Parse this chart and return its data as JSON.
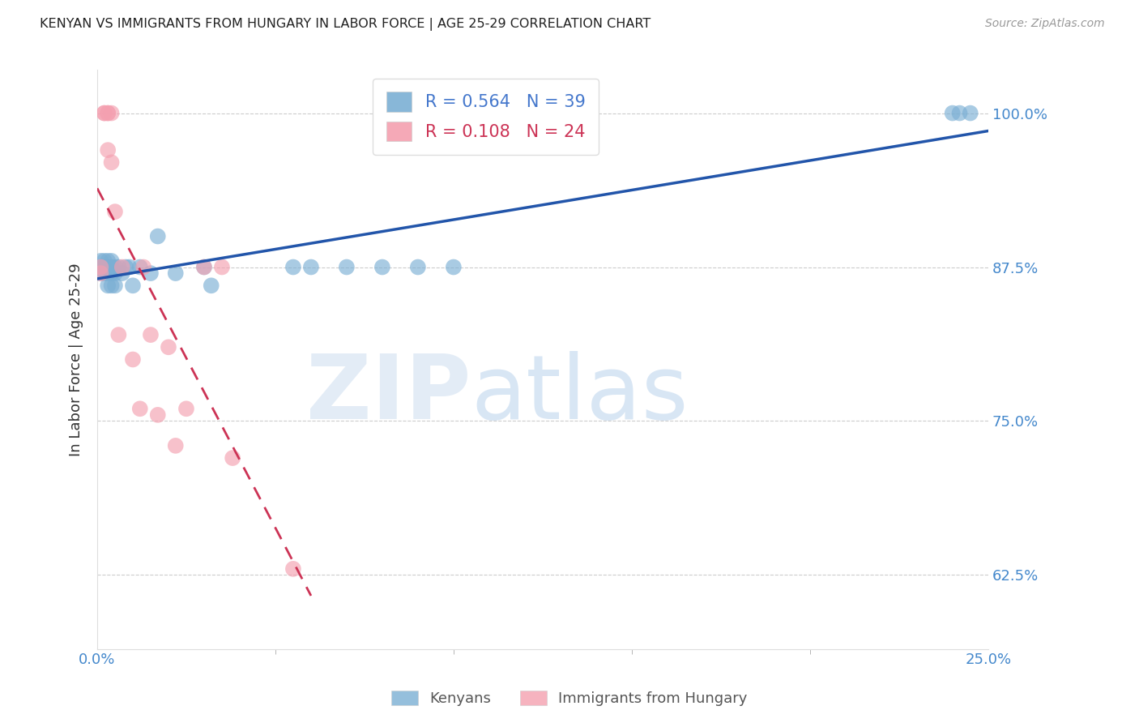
{
  "title": "KENYAN VS IMMIGRANTS FROM HUNGARY IN LABOR FORCE | AGE 25-29 CORRELATION CHART",
  "source": "Source: ZipAtlas.com",
  "ylabel": "In Labor Force | Age 25-29",
  "ytick_values": [
    1.0,
    0.875,
    0.75,
    0.625
  ],
  "xmin": 0.0,
  "xmax": 0.25,
  "ymin": 0.565,
  "ymax": 1.035,
  "blue_R": 0.564,
  "blue_N": 39,
  "pink_R": 0.108,
  "pink_N": 24,
  "blue_color": "#7BAFD4",
  "pink_color": "#F4A0B0",
  "line_blue": "#2255AA",
  "line_pink": "#CC3355",
  "blue_x": [
    0.001,
    0.001,
    0.001,
    0.002,
    0.002,
    0.002,
    0.002,
    0.003,
    0.003,
    0.003,
    0.003,
    0.003,
    0.004,
    0.004,
    0.004,
    0.004,
    0.005,
    0.005,
    0.005,
    0.006,
    0.007,
    0.008,
    0.009,
    0.01,
    0.012,
    0.015,
    0.017,
    0.022,
    0.03,
    0.032,
    0.055,
    0.06,
    0.07,
    0.08,
    0.09,
    0.1,
    0.24,
    0.242,
    0.245
  ],
  "blue_y": [
    0.875,
    0.88,
    0.87,
    0.875,
    0.88,
    0.87,
    0.875,
    0.875,
    0.88,
    0.86,
    0.875,
    0.87,
    0.875,
    0.88,
    0.87,
    0.86,
    0.875,
    0.87,
    0.86,
    0.875,
    0.87,
    0.875,
    0.875,
    0.86,
    0.875,
    0.87,
    0.9,
    0.87,
    0.875,
    0.86,
    0.875,
    0.875,
    0.875,
    0.875,
    0.875,
    0.875,
    1.0,
    1.0,
    1.0
  ],
  "pink_x": [
    0.001,
    0.001,
    0.002,
    0.002,
    0.003,
    0.003,
    0.003,
    0.004,
    0.004,
    0.005,
    0.006,
    0.007,
    0.01,
    0.012,
    0.013,
    0.015,
    0.017,
    0.02,
    0.022,
    0.025,
    0.03,
    0.035,
    0.038,
    0.055
  ],
  "pink_y": [
    0.875,
    0.87,
    1.0,
    1.0,
    1.0,
    1.0,
    0.97,
    1.0,
    0.96,
    0.92,
    0.82,
    0.875,
    0.8,
    0.76,
    0.875,
    0.82,
    0.755,
    0.81,
    0.73,
    0.76,
    0.875,
    0.875,
    0.72,
    0.63
  ]
}
